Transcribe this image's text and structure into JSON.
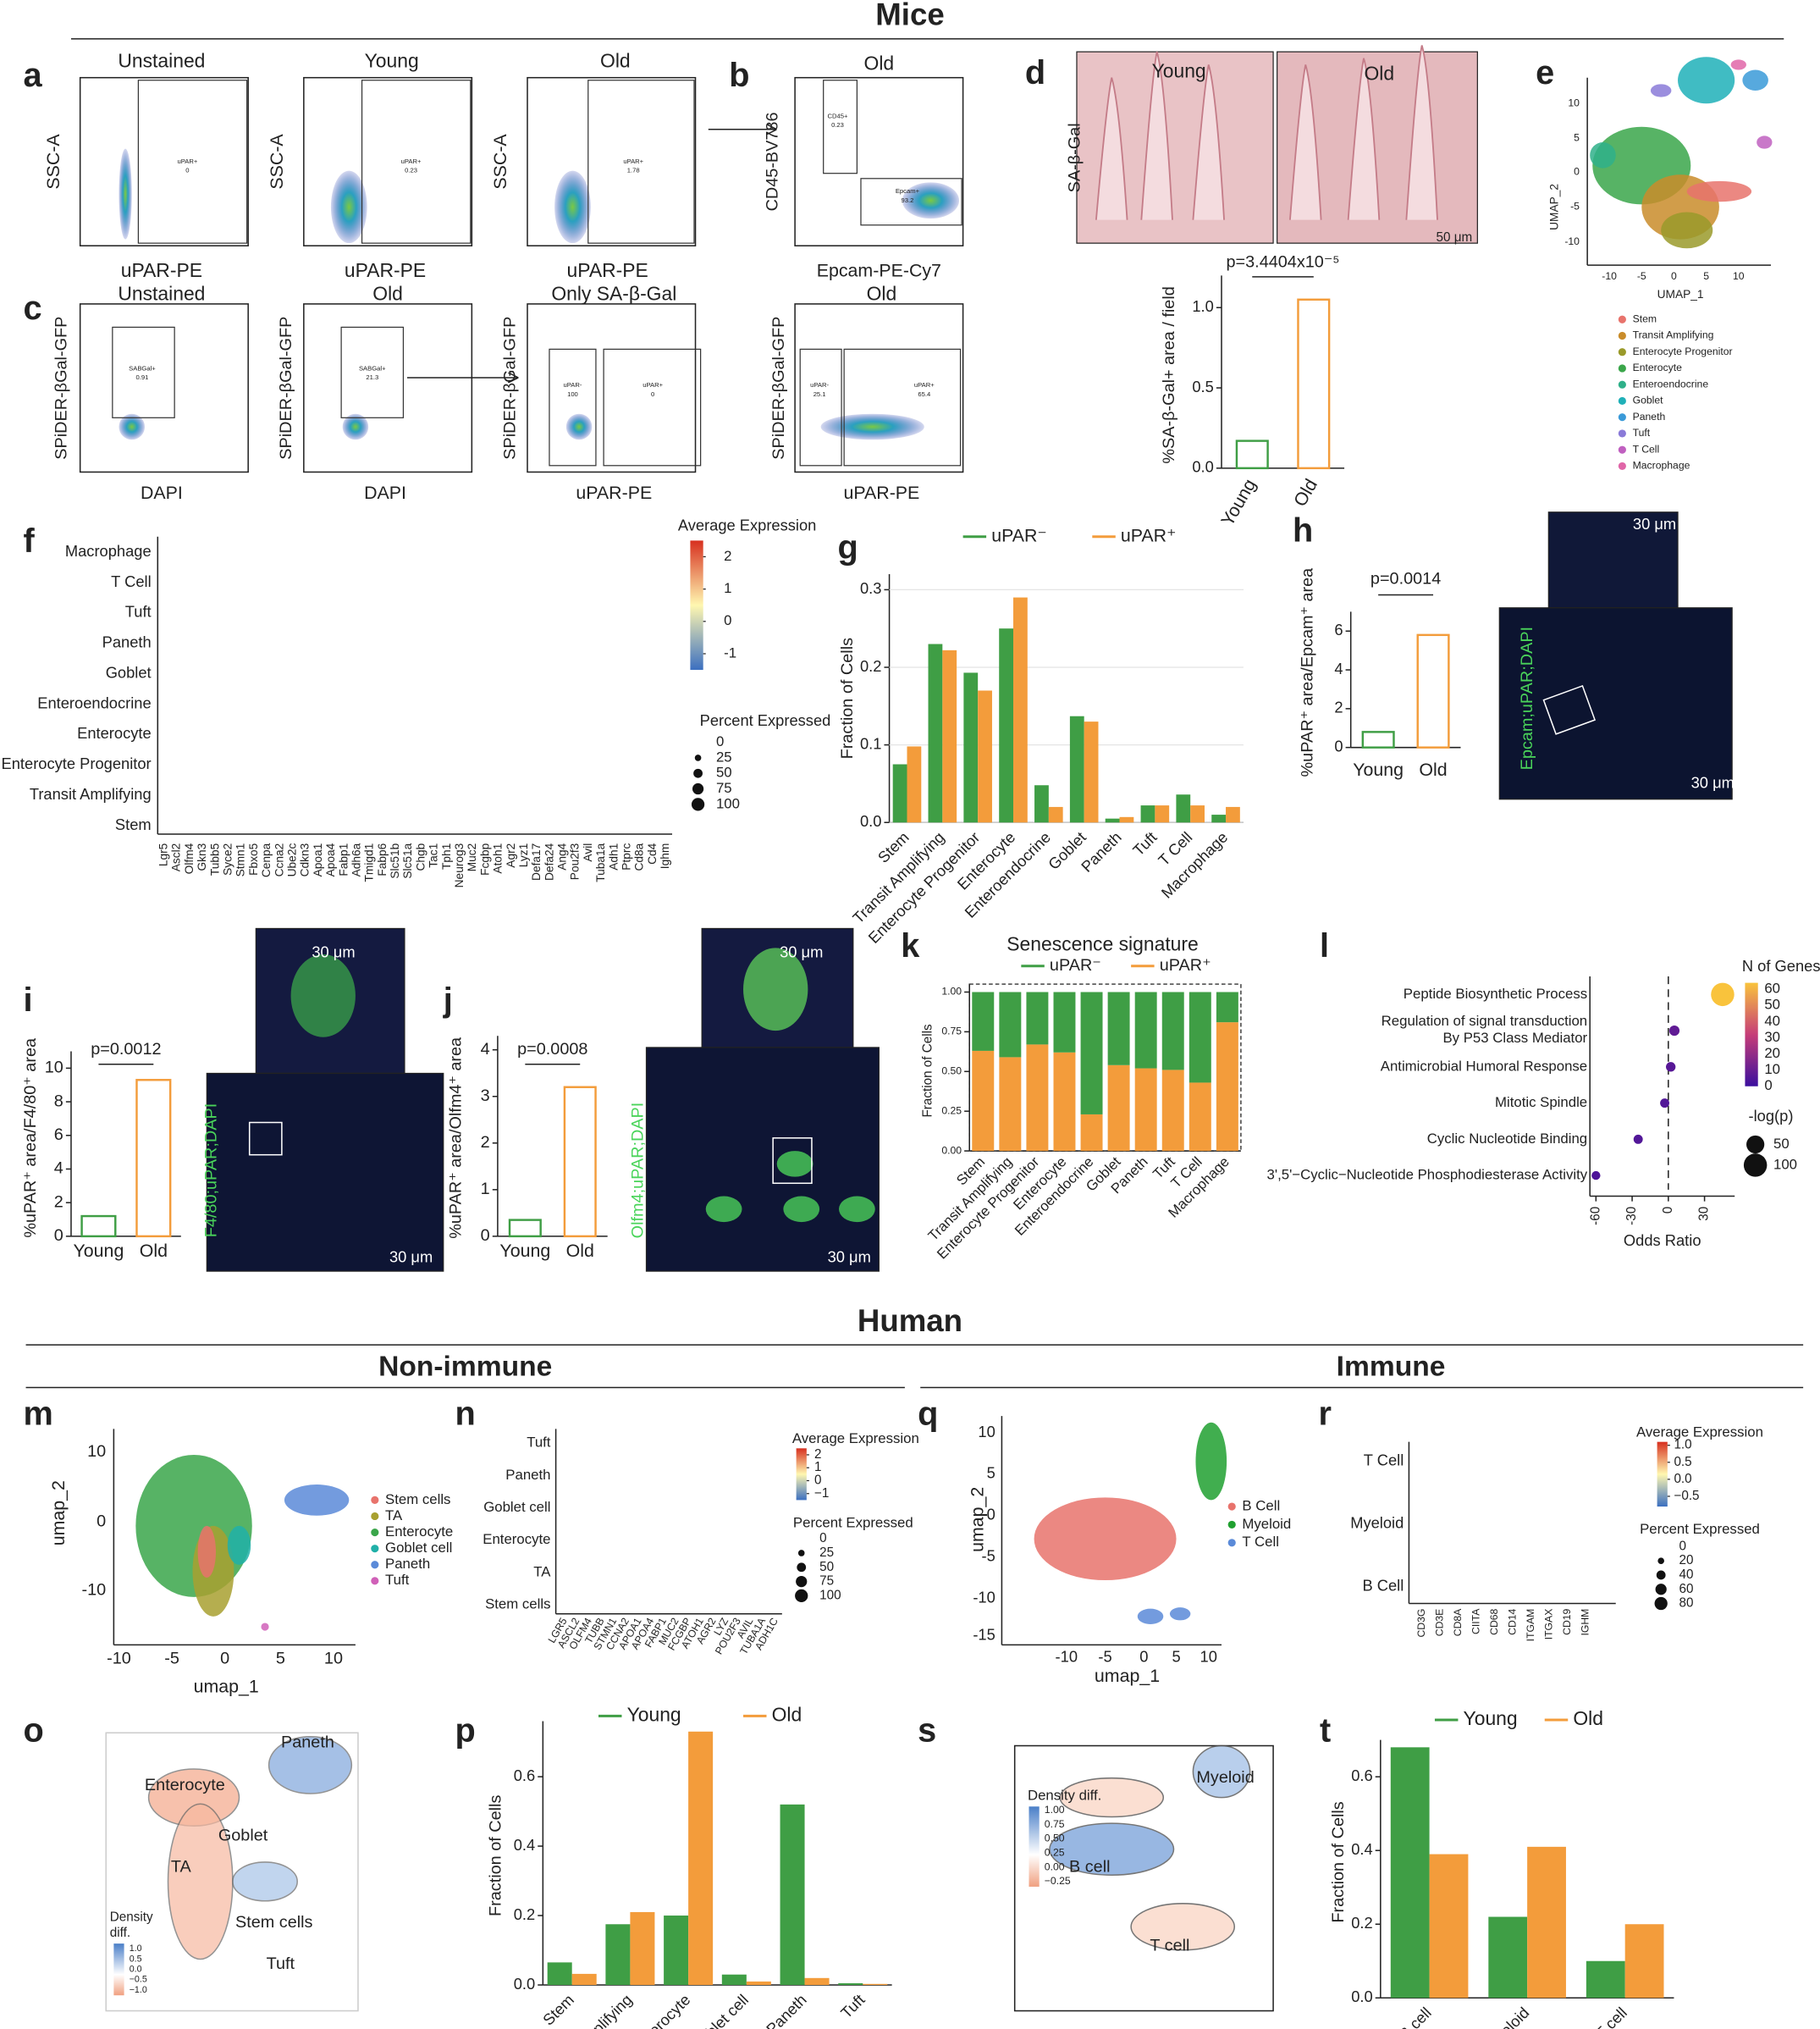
{
  "figure": {
    "sections": [
      "Mice",
      "Human",
      "Non-immune",
      "Immune"
    ],
    "panels": [
      "a",
      "b",
      "c",
      "d",
      "e",
      "f",
      "g",
      "h",
      "i",
      "j",
      "k",
      "l",
      "m",
      "n",
      "o",
      "p",
      "q",
      "r",
      "s",
      "t"
    ],
    "labels": [
      "Unstained",
      "Young",
      "Old",
      "Old",
      "SSC-A",
      "SSC-A",
      "SSC-A",
      "CD45-BV786",
      "uPAR-PE",
      "uPAR-PE",
      "uPAR-PE",
      "Epcam-PE-Cy7",
      "Unstained",
      "Old",
      "Only SA-β-Gal",
      "Old",
      "SPiDER-βGal-GFP",
      "SPiDER-βGal-GFP",
      "SPiDER-βGal-GFP",
      "SPiDER-βGal-GFP",
      "DAPI",
      "DAPI",
      "uPAR-PE",
      "uPAR-PE",
      "uPAR+",
      "0",
      "uPAR+",
      "0.23",
      "uPAR+",
      "1.78",
      "CD45+",
      "0.23",
      "Epcam+",
      "93.2",
      "SABGal+",
      "0.91",
      "SABGal+",
      "21.3",
      "uPAR-",
      "100",
      "uPAR+",
      "0",
      "uPAR-",
      "25.1",
      "uPAR+",
      "65.4",
      "Young",
      "Old",
      "SA-β-Gal",
      "50 μm",
      "30 μm",
      "30 μm",
      "Epcam;uPAR;DAPI",
      "30 μm",
      "30 μm",
      "F4/80;uPAR;DAPI",
      "30 μm",
      "30 μm",
      "Olfm4;uPAR;DAPI",
      "UMAP_2",
      "UMAP_1",
      "10",
      "5",
      "0",
      "-5",
      "-10",
      "-10",
      "-5",
      "0",
      "5",
      "10",
      "umap_2",
      "umap_1",
      "10",
      "0",
      "-10",
      "-10",
      "-5",
      "0",
      "5",
      "10",
      "umap_2",
      "umap_1",
      "10",
      "5",
      "0",
      "-5",
      "-10",
      "-15",
      "-10",
      "-5",
      "0",
      "5",
      "10",
      "Enterocyte",
      "Paneth",
      "Goblet",
      "TA",
      "Stem cells",
      "Tuft",
      "Density",
      "diff.",
      "1.0",
      "0.5",
      "0.0",
      "−0.5",
      "−1.0",
      "Density diff.",
      "1.00",
      "0.75",
      "0.50",
      "0.25",
      "0.00",
      "−0.25",
      "Myeloid",
      "B cell",
      "T cell"
    ]
  },
  "chart_data": [
    {
      "type": "bar",
      "categories": [
        "Young",
        "Old"
      ],
      "values": [
        0.17,
        1.05
      ],
      "colors": [
        "#3f9e45",
        "#f39c3b"
      ],
      "filled": false,
      "ylabel": "%SA-β-Gal+ area / field",
      "annotation": "p=3.4404x10⁻⁵",
      "ylim": [
        0,
        1.2
      ],
      "yticks": [
        {
          "value": 0,
          "label": "0.0"
        },
        0.5,
        {
          "value": 1,
          "label": "1.0"
        }
      ]
    },
    {
      "type": "bar",
      "categories": [
        "Young",
        "Old"
      ],
      "values": [
        0.8,
        5.8
      ],
      "colors": [
        "#3f9e45",
        "#f39c3b"
      ],
      "filled": false,
      "ylabel": "%uPAR⁺ area/Epcam⁺ area",
      "annotation": "p=0.0014",
      "ylim": [
        0,
        7
      ],
      "yticks": [
        0,
        2,
        4,
        6
      ]
    },
    {
      "type": "bar",
      "categories": [
        "Young",
        "Old"
      ],
      "values": [
        1.2,
        9.3
      ],
      "colors": [
        "#3f9e45",
        "#f39c3b"
      ],
      "filled": false,
      "ylabel": "%uPAR⁺ area/F4/80⁺ area",
      "annotation": "p=0.0012",
      "ylim": [
        0,
        11
      ],
      "yticks": [
        0,
        2,
        4,
        6,
        8,
        10
      ]
    },
    {
      "type": "bar",
      "categories": [
        "Young",
        "Old"
      ],
      "values": [
        0.35,
        3.2
      ],
      "colors": [
        "#3f9e45",
        "#f39c3b"
      ],
      "filled": false,
      "ylabel": "%uPAR⁺ area/Olfm4⁺ area",
      "annotation": "p=0.0008",
      "ylim": [
        0,
        4.3
      ],
      "yticks": [
        0,
        1,
        2,
        3,
        4
      ]
    },
    {
      "type": "grouped_bar",
      "categories": [
        "Stem",
        "Transit Amplifying",
        "Enterocyte Progenitor",
        "Enterocyte",
        "Enteroendocrine",
        "Goblet",
        "Paneth",
        "Tuft",
        "T Cell",
        "Macrophage"
      ],
      "series": [
        {
          "name": "uPAR⁻",
          "color": "#3f9e45",
          "values": [
            0.075,
            0.23,
            0.193,
            0.25,
            0.048,
            0.137,
            0.005,
            0.022,
            0.036,
            0.01
          ]
        },
        {
          "name": "uPAR⁺",
          "color": "#f39c3b",
          "values": [
            0.098,
            0.222,
            0.17,
            0.29,
            0.02,
            0.13,
            0.007,
            0.022,
            0.022,
            0.02
          ]
        }
      ],
      "ylabel": "Fraction of Cells",
      "ylim": [
        0,
        0.32
      ],
      "yticks": [
        {
          "value": 0,
          "label": "0.0"
        },
        0.1,
        0.2,
        0.3
      ],
      "grid": true
    },
    {
      "type": "stacked_bar",
      "title": "Senescence signature",
      "categories": [
        "Stem",
        "Transit Amplifying",
        "Enterocyte Progenitor",
        "Enterocyte",
        "Enteroendocrine",
        "Goblet",
        "Paneth",
        "Tuft",
        "T Cell",
        "Macrophage"
      ],
      "series": [
        {
          "name": "uPAR⁻",
          "color": "#3f9e45",
          "values": [
            0.37,
            0.41,
            0.33,
            0.38,
            0.77,
            0.46,
            0.48,
            0.49,
            0.57,
            0.19
          ]
        },
        {
          "name": "uPAR⁺",
          "color": "#f39c3b",
          "values": [
            0.63,
            0.59,
            0.67,
            0.62,
            0.23,
            0.54,
            0.52,
            0.51,
            0.43,
            0.81
          ]
        }
      ],
      "ylabel": "Fraction of Cells",
      "ylim": [
        0,
        1.05
      ],
      "yticks": [
        {
          "value": 0,
          "label": "0.00"
        },
        {
          "value": 0.25,
          "label": "0.25"
        },
        {
          "value": 0.5,
          "label": "0.50"
        },
        {
          "value": 0.75,
          "label": "0.75"
        },
        {
          "value": 1,
          "label": "1.00"
        }
      ]
    },
    {
      "type": "grouped_bar",
      "categories": [
        "Stem",
        "Transit Amplifying",
        "Enterocyte",
        "Goblet cell",
        "Paneth",
        "Tuft"
      ],
      "series": [
        {
          "name": "Young",
          "color": "#3f9e45",
          "values": [
            0.065,
            0.175,
            0.2,
            0.03,
            0.52,
            0.005
          ]
        },
        {
          "name": "Old",
          "color": "#f39c3b",
          "values": [
            0.032,
            0.21,
            0.73,
            0.01,
            0.02,
            0.003
          ]
        }
      ],
      "ylabel": "Fraction of Cells",
      "ylim": [
        0,
        0.76
      ],
      "yticks": [
        {
          "value": 0,
          "label": "0.0"
        },
        0.2,
        0.4,
        0.6
      ]
    },
    {
      "type": "grouped_bar",
      "categories": [
        "B cell",
        "Myeloid",
        "T cell"
      ],
      "series": [
        {
          "name": "Young",
          "color": "#3f9e45",
          "values": [
            0.68,
            0.22,
            0.1
          ]
        },
        {
          "name": "Old",
          "color": "#f39c3b",
          "values": [
            0.39,
            0.41,
            0.2
          ]
        }
      ],
      "ylabel": "Fraction of Cells",
      "ylim": [
        0,
        0.7
      ],
      "yticks": [
        {
          "value": 0,
          "label": "0.0"
        },
        0.2,
        0.4,
        0.6
      ]
    },
    {
      "type": "dot_scatter",
      "categories": [
        "Peptide Biosynthetic Process",
        "Regulation of signal transduction\nBy P53 Class Mediator",
        "Antimicrobial Humoral Response",
        "Mitotic Spindle",
        "Cyclic Nucleotide Binding",
        "3',5'−Cyclic−Nucleotide Phosphodiesterase Activity"
      ],
      "x": [
        45,
        5,
        2,
        -3,
        -25,
        -60
      ],
      "n_genes": [
        62,
        8,
        6,
        5,
        5,
        4
      ],
      "neg_log_p": [
        100,
        8,
        6,
        5,
        5,
        4
      ],
      "xlabel": "Odds Ratio",
      "xlim": [
        -65,
        55
      ],
      "xticks": [
        -60,
        -30,
        0,
        30
      ],
      "color_title": "N of Genes",
      "color_ticks": [
        60,
        50,
        40,
        30,
        20,
        10,
        0
      ],
      "size_title": "-log(p)",
      "size_ticks": [
        50,
        100
      ]
    },
    {
      "type": "dotplot",
      "rows": [
        "Macrophage",
        "T Cell",
        "Tuft",
        "Paneth",
        "Goblet",
        "Enteroendocrine",
        "Enterocyte",
        "Enterocyte Progenitor",
        "Transit Amplifying",
        "Stem"
      ],
      "genes": [
        "Lgr5",
        "Ascl2",
        "Olfm4",
        "Gkn3",
        "Tubb5",
        "Syce2",
        "Stmn1",
        "Fbxo5",
        "Cenpa",
        "Ccna2",
        "Ube2c",
        "Cdkn3",
        "Apoa1",
        "Apoa4",
        "Fabp1",
        "Adh6a",
        "Tmigd1",
        "Fabp6",
        "Slc51b",
        "Slc51a",
        "Chgb",
        "Tac1",
        "Tph1",
        "Neurog3",
        "Muc2",
        "Fcgbp",
        "Atoh1",
        "Agr2",
        "Lyz1",
        "Defa17",
        "Defa24",
        "Ang4",
        "Pou2f3",
        "Avil",
        "Tuba1a",
        "Adh1",
        "Ptprc",
        "Cd8a",
        "Cd4",
        "Ighm"
      ],
      "color_title": "Average Expression",
      "color_lim": [
        -1.5,
        2.5
      ],
      "color_ticks": [
        2,
        1,
        0,
        -1
      ],
      "size_title": "Percent Expressed",
      "size_ticks": [
        0,
        25,
        50,
        75,
        100
      ]
    },
    {
      "type": "dotplot",
      "rows": [
        "Tuft",
        "Paneth",
        "Goblet cell",
        "Enterocyte",
        "TA",
        "Stem cells"
      ],
      "genes": [
        "LGR5",
        "ASCL2",
        "OLFM4",
        "TUBB",
        "STMN1",
        "CCNA2",
        "APOA1",
        "APOA4",
        "FABP1",
        "MUC2",
        "FCGBP",
        "ATOH1",
        "AGR2",
        "LYZ",
        "POU2F3",
        "AVIL",
        "TUBA1A",
        "ADH1C"
      ],
      "color_title": "Average Expression",
      "color_lim": [
        -1.5,
        2.5
      ],
      "color_ticks": [
        2,
        1,
        0,
        {
          "value": -1,
          "label": "−1"
        }
      ],
      "size_title": "Percent Expressed",
      "size_ticks": [
        0,
        25,
        50,
        75,
        100
      ]
    },
    {
      "type": "dotplot",
      "rows": [
        "T Cell",
        "Myeloid",
        "B Cell"
      ],
      "genes": [
        "CD3G",
        "CD3E",
        "CD8A",
        "CIITA",
        "CD68",
        "CD14",
        "ITGAM",
        "ITGAX",
        "CD19",
        "IGHM"
      ],
      "color_title": "Average Expression",
      "color_lim": [
        -0.8,
        1.1
      ],
      "color_ticks": [
        {
          "value": 1,
          "label": "1.0"
        },
        0.5,
        {
          "value": 0,
          "label": "0.0"
        },
        {
          "value": -0.5,
          "label": "−0.5"
        }
      ],
      "size_title": "Percent Expressed",
      "size_ticks": [
        0,
        20,
        40,
        60,
        80
      ]
    },
    {
      "type": "umap",
      "series": [
        {
          "name": "Stem",
          "color": "#e8736c"
        },
        {
          "name": "Transit Amplifying",
          "color": "#c98c2a"
        },
        {
          "name": "Enterocyte Progenitor",
          "color": "#9a9a2a"
        },
        {
          "name": "Enterocyte",
          "color": "#3aa64a"
        },
        {
          "name": "Enteroendocrine",
          "color": "#2fb089"
        },
        {
          "name": "Goblet",
          "color": "#1fb0b8"
        },
        {
          "name": "Paneth",
          "color": "#3a9ad8"
        },
        {
          "name": "Tuft",
          "color": "#8a7ad8"
        },
        {
          "name": "T Cell",
          "color": "#c060c0"
        },
        {
          "name": "Macrophage",
          "color": "#e066a8"
        }
      ]
    },
    {
      "type": "umap",
      "series": [
        {
          "name": "Stem cells",
          "color": "#e8736c"
        },
        {
          "name": "TA",
          "color": "#a8a030"
        },
        {
          "name": "Enterocyte",
          "color": "#3aa64a"
        },
        {
          "name": "Goblet cell",
          "color": "#20b0a8"
        },
        {
          "name": "Paneth",
          "color": "#5a8ad8"
        },
        {
          "name": "Tuft",
          "color": "#d060b8"
        }
      ]
    },
    {
      "type": "umap",
      "series": [
        {
          "name": "B Cell",
          "color": "#e8736c"
        },
        {
          "name": "Myeloid",
          "color": "#20a030"
        },
        {
          "name": "T Cell",
          "color": "#5a8ad8"
        }
      ]
    }
  ]
}
